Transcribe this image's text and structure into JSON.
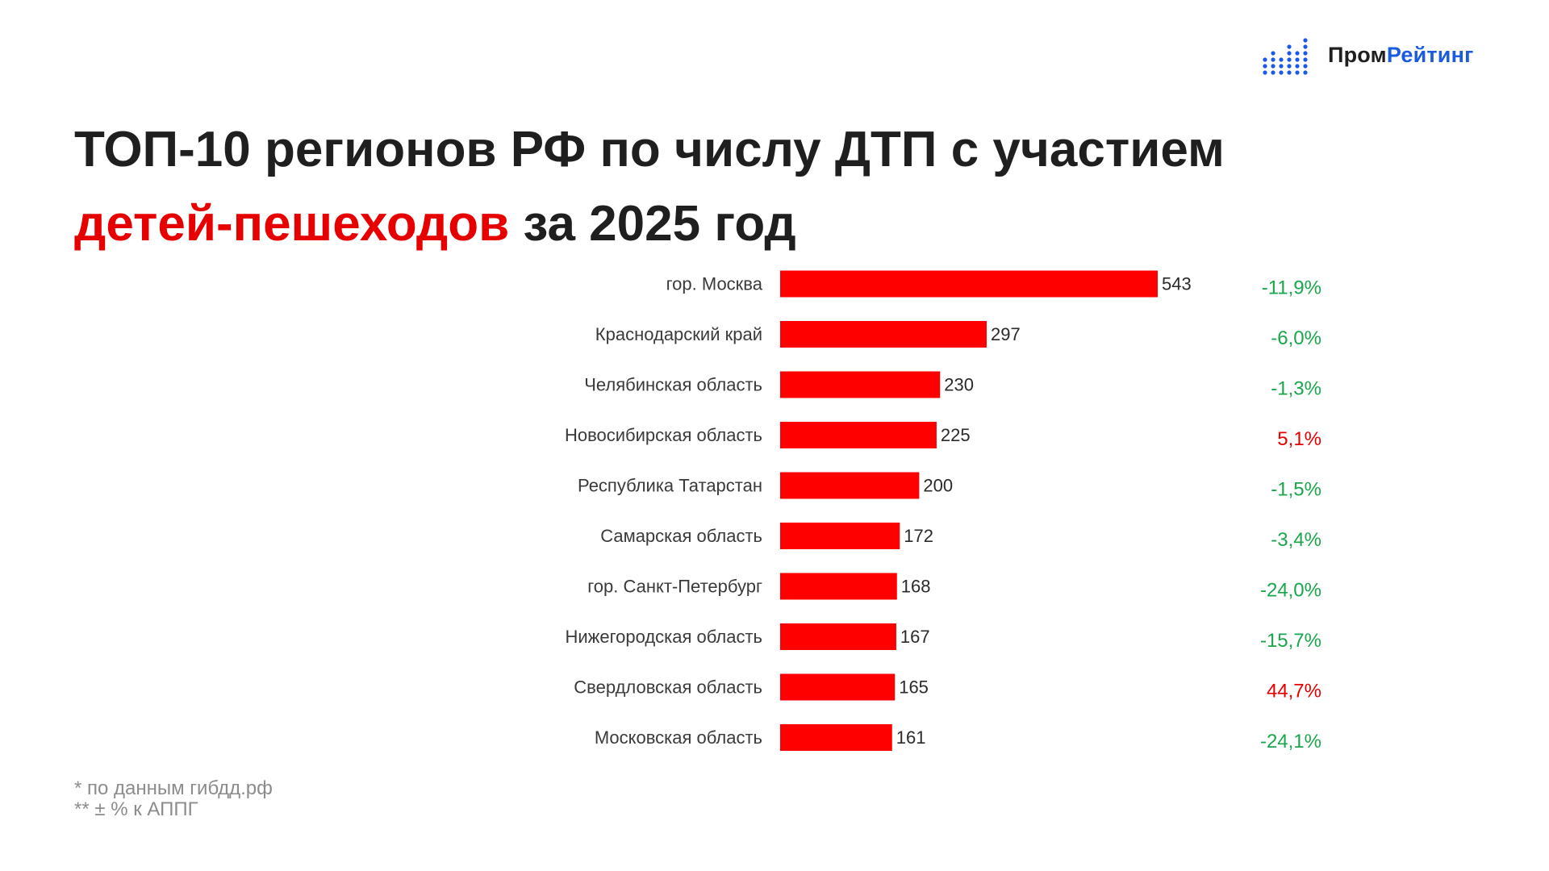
{
  "logo": {
    "text_part1": "Пром",
    "text_part2": "Рейтинг",
    "icon": "bar-dots-logo-icon",
    "colors": {
      "dark": "#1f1f1f",
      "accent": "#1a5be0"
    }
  },
  "title": {
    "line1": "ТОП-10  регионов РФ  по числу ДТП с участием",
    "line2_highlight": "детей-пешеходов",
    "line2_rest": " за 2025 год"
  },
  "colors": {
    "bar": "#ff0000",
    "highlight": "#e60000",
    "change_negative": "#1aa64b",
    "change_positive": "#e60000"
  },
  "chart_data": {
    "type": "bar",
    "orientation": "horizontal",
    "categories": [
      "гор. Москва",
      "Краснодарский край",
      "Челябинская область",
      "Новосибирская область",
      "Республика Татарстан",
      "Самарская область",
      "гор. Санкт-Петербург",
      "Нижегородская область",
      "Свердловская область",
      "Московская область"
    ],
    "values": [
      543,
      297,
      230,
      225,
      200,
      172,
      168,
      167,
      165,
      161
    ],
    "value_labels": [
      "543",
      "297",
      "230",
      "225",
      "200",
      "172",
      "168",
      "167",
      "165",
      "161"
    ],
    "change_labels": [
      "-11,9%",
      "-6,0%",
      "-1,3%",
      "5,1%",
      "-1,5%",
      "-3,4%",
      "-24,0%",
      "-15,7%",
      "44,7%",
      "-24,1%"
    ],
    "change_values": [
      -11.9,
      -6.0,
      -1.3,
      5.1,
      -1.5,
      -3.4,
      -24.0,
      -15.7,
      44.7,
      -24.1
    ],
    "xlim": [
      0,
      543
    ],
    "grid": false,
    "legend": "none"
  },
  "footnotes": {
    "line1": "* по данным гибдд.рф",
    "line2": "** ± % к АППГ"
  }
}
